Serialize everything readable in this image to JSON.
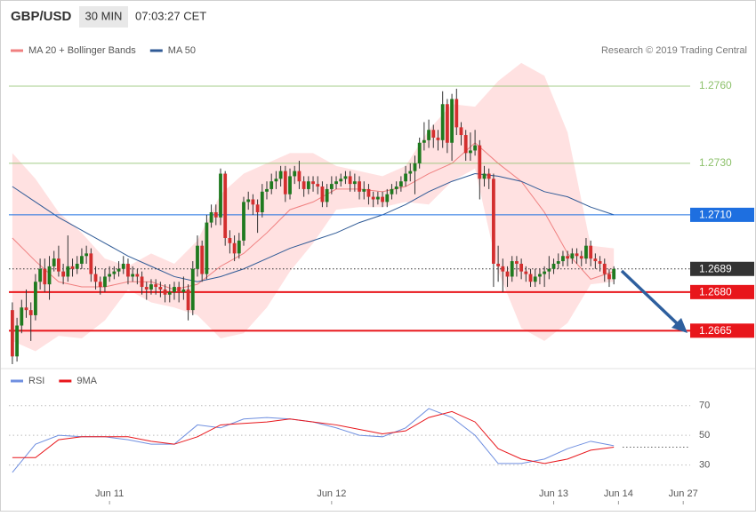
{
  "header": {
    "symbol": "GBP/USD",
    "interval": "30 MIN",
    "time": "07:03:27 CET"
  },
  "copyright": "Research © 2019 Trading Central",
  "chart_data": [
    {
      "type": "candlestick",
      "up_color": "#1f7a1f",
      "down_color": "#d32f2f",
      "wick_color": "#333333",
      "xlim": [
        -0.75,
        146.5
      ],
      "ylim": [
        1.2652,
        1.277
      ],
      "open": [
        1.2673,
        1.2655,
        1.2667,
        1.2674,
        1.2673,
        1.2671,
        1.2684,
        1.2689,
        1.2683,
        1.269,
        1.2693,
        1.2688,
        1.2686,
        1.269,
        1.2689,
        1.2691,
        1.2694,
        1.2695,
        1.2687,
        1.2684,
        1.2682,
        1.2686,
        1.2687,
        1.2688,
        1.2689,
        1.2691,
        1.2686,
        1.2687,
        1.2686,
        1.2682,
        1.2681,
        1.2683,
        1.2682,
        1.2681,
        1.2679,
        1.268,
        1.2682,
        1.268,
        1.2681,
        1.2673,
        1.2689,
        1.2698,
        1.2687,
        1.2707,
        1.2711,
        1.2709,
        1.2726,
        1.2701,
        1.2699,
        1.2695,
        1.27,
        1.2715,
        1.2716,
        1.2714,
        1.2711,
        1.2719,
        1.272,
        1.2723,
        1.2724,
        1.2727,
        1.2718,
        1.2725,
        1.2727,
        1.2723,
        1.272,
        1.2723,
        1.2722,
        1.2721,
        1.2715,
        1.272,
        1.2722,
        1.2723,
        1.2724,
        1.2725,
        1.2722,
        1.2723,
        1.2719,
        1.272,
        1.2717,
        1.2716,
        1.2717,
        1.2715,
        1.2718,
        1.272,
        1.2721,
        1.2723,
        1.2726,
        1.2727,
        1.273,
        1.2738,
        1.2739,
        1.2743,
        1.274,
        1.2739,
        1.2753,
        1.2738,
        1.2755,
        1.2744,
        1.2741,
        1.2734,
        1.2735,
        1.2737,
        1.2724,
        1.2726,
        1.2724,
        1.2691,
        1.269,
        1.2688,
        1.2686,
        1.2692,
        1.2691,
        1.2688,
        1.2687,
        1.2684,
        1.2686,
        1.2687,
        1.2688,
        1.2689,
        1.2691,
        1.2692,
        1.2694,
        1.2693,
        1.2695,
        1.2694,
        1.2693,
        1.2698,
        1.2693,
        1.2692,
        1.2691,
        1.2687,
        1.2685
      ],
      "high": [
        1.2676,
        1.267,
        1.2677,
        1.2681,
        1.2676,
        1.2687,
        1.2693,
        1.2693,
        1.2694,
        1.2696,
        1.2698,
        1.2691,
        1.2702,
        1.2693,
        1.2694,
        1.2697,
        1.2698,
        1.2697,
        1.269,
        1.2686,
        1.2689,
        1.269,
        1.269,
        1.2692,
        1.2694,
        1.2693,
        1.269,
        1.2689,
        1.2688,
        1.2684,
        1.2685,
        1.2685,
        1.2684,
        1.2683,
        1.2683,
        1.2684,
        1.2684,
        1.2686,
        1.2683,
        1.2692,
        1.2702,
        1.27,
        1.271,
        1.2714,
        1.2714,
        1.2728,
        1.2727,
        1.2704,
        1.2702,
        1.2703,
        1.2717,
        1.2719,
        1.2718,
        1.2716,
        1.2722,
        1.2723,
        1.2726,
        1.2727,
        1.2729,
        1.2729,
        1.2728,
        1.2729,
        1.2731,
        1.2725,
        1.2725,
        1.2725,
        1.2725,
        1.2723,
        1.2722,
        1.2725,
        1.2725,
        1.2726,
        1.2727,
        1.2727,
        1.2726,
        1.2725,
        1.2723,
        1.2722,
        1.2719,
        1.2719,
        1.2719,
        1.272,
        1.2722,
        1.2723,
        1.2725,
        1.2729,
        1.273,
        1.2733,
        1.274,
        1.2746,
        1.2747,
        1.2745,
        1.2743,
        1.2758,
        1.2755,
        1.2757,
        1.2759,
        1.2746,
        1.2743,
        1.2742,
        1.2743,
        1.2739,
        1.2729,
        1.2728,
        1.2726,
        1.2698,
        1.2693,
        1.269,
        1.2694,
        1.2694,
        1.2693,
        1.269,
        1.2689,
        1.2689,
        1.2689,
        1.269,
        1.2694,
        1.2693,
        1.2695,
        1.2696,
        1.2696,
        1.2697,
        1.2697,
        1.2696,
        1.2701,
        1.27,
        1.2695,
        1.2694,
        1.2693,
        1.2689,
        1.269
      ],
      "low": [
        1.2652,
        1.2653,
        1.2664,
        1.267,
        1.2661,
        1.2669,
        1.2681,
        1.268,
        1.2677,
        1.2688,
        1.2686,
        1.2683,
        1.2684,
        1.2686,
        1.2687,
        1.2689,
        1.2691,
        1.2684,
        1.2681,
        1.2679,
        1.268,
        1.2684,
        1.2685,
        1.2686,
        1.2687,
        1.2683,
        1.2684,
        1.2683,
        1.2679,
        1.2677,
        1.2679,
        1.2679,
        1.2678,
        1.2676,
        1.2676,
        1.2677,
        1.2676,
        1.2677,
        1.2669,
        1.2671,
        1.2686,
        1.2684,
        1.2685,
        1.2705,
        1.2706,
        1.2706,
        1.2698,
        1.2695,
        1.2692,
        1.2693,
        1.2698,
        1.2712,
        1.271,
        1.2703,
        1.2709,
        1.2716,
        1.2718,
        1.272,
        1.2721,
        1.2715,
        1.2716,
        1.2722,
        1.272,
        1.2717,
        1.2718,
        1.2719,
        1.2718,
        1.2713,
        1.2713,
        1.2718,
        1.272,
        1.2721,
        1.2722,
        1.2719,
        1.2719,
        1.2716,
        1.2716,
        1.2714,
        1.2713,
        1.2714,
        1.2713,
        1.2713,
        1.2716,
        1.2718,
        1.2719,
        1.2721,
        1.2723,
        1.2718,
        1.2728,
        1.2735,
        1.2736,
        1.2736,
        1.2735,
        1.2736,
        1.2734,
        1.2731,
        1.2741,
        1.2737,
        1.2731,
        1.2731,
        1.2733,
        1.2716,
        1.2721,
        1.272,
        1.2682,
        1.2684,
        1.268,
        1.2682,
        1.2684,
        1.2686,
        1.2685,
        1.2684,
        1.2682,
        1.2682,
        1.2683,
        1.2682,
        1.2685,
        1.2687,
        1.2689,
        1.269,
        1.269,
        1.2691,
        1.2691,
        1.269,
        1.2691,
        1.269,
        1.2689,
        1.2688,
        1.2684,
        1.2682,
        1.2683
      ],
      "close": [
        1.2655,
        1.2667,
        1.2674,
        1.2673,
        1.2671,
        1.2684,
        1.2689,
        1.2683,
        1.269,
        1.2693,
        1.2688,
        1.2686,
        1.269,
        1.2689,
        1.2691,
        1.2694,
        1.2695,
        1.2687,
        1.2684,
        1.2682,
        1.2686,
        1.2687,
        1.2688,
        1.2689,
        1.2691,
        1.2686,
        1.2687,
        1.2686,
        1.2682,
        1.2681,
        1.2683,
        1.2682,
        1.2681,
        1.2679,
        1.268,
        1.2682,
        1.268,
        1.2681,
        1.2673,
        1.2689,
        1.2698,
        1.2687,
        1.2707,
        1.2711,
        1.2709,
        1.2726,
        1.2701,
        1.2699,
        1.2695,
        1.27,
        1.2715,
        1.2716,
        1.2714,
        1.2711,
        1.2719,
        1.272,
        1.2723,
        1.2724,
        1.2727,
        1.2718,
        1.2725,
        1.2727,
        1.2723,
        1.272,
        1.2723,
        1.2722,
        1.2721,
        1.2715,
        1.272,
        1.2722,
        1.2723,
        1.2724,
        1.2725,
        1.2722,
        1.2723,
        1.2719,
        1.272,
        1.2717,
        1.2716,
        1.2717,
        1.2715,
        1.2718,
        1.272,
        1.2721,
        1.2723,
        1.2726,
        1.2727,
        1.273,
        1.2738,
        1.2739,
        1.2743,
        1.274,
        1.2739,
        1.2753,
        1.2738,
        1.2755,
        1.2744,
        1.2741,
        1.2734,
        1.2735,
        1.2737,
        1.2724,
        1.2726,
        1.2724,
        1.2691,
        1.269,
        1.2688,
        1.2686,
        1.2692,
        1.2691,
        1.2688,
        1.2687,
        1.2684,
        1.2686,
        1.2687,
        1.2688,
        1.2689,
        1.2691,
        1.2692,
        1.2694,
        1.2693,
        1.2695,
        1.2694,
        1.2693,
        1.2698,
        1.2693,
        1.2692,
        1.2691,
        1.2687,
        1.2685,
        1.2689
      ],
      "overlays": [
        {
          "name": "MA 20 + Bollinger Bands",
          "color": "#f08080",
          "band_color": "#ffdcdc",
          "x": [
            0,
            5,
            10,
            15,
            20,
            25,
            30,
            35,
            40,
            45,
            50,
            55,
            60,
            65,
            70,
            75,
            80,
            85,
            90,
            95,
            100,
            105,
            110,
            115,
            120,
            125,
            130
          ],
          "values": [
            1.2701,
            1.2692,
            1.2684,
            1.2682,
            1.2682,
            1.2684,
            1.2684,
            1.2681,
            1.2683,
            1.269,
            1.2695,
            1.2703,
            1.2712,
            1.2715,
            1.272,
            1.272,
            1.2719,
            1.2721,
            1.2726,
            1.273,
            1.2738,
            1.273,
            1.2723,
            1.2711,
            1.2695,
            1.2685,
            1.2688
          ],
          "upper": [
            1.2734,
            1.2724,
            1.2711,
            1.2703,
            1.2693,
            1.269,
            1.2695,
            1.2691,
            1.27,
            1.2718,
            1.2726,
            1.273,
            1.2734,
            1.2734,
            1.2729,
            1.2727,
            1.2725,
            1.2729,
            1.2743,
            1.2753,
            1.2752,
            1.2762,
            1.2769,
            1.2764,
            1.2742,
            1.2698,
            1.2697
          ],
          "lower": [
            1.2661,
            1.2657,
            1.2663,
            1.2662,
            1.2669,
            1.2681,
            1.2676,
            1.2674,
            1.2671,
            1.2662,
            1.2664,
            1.2674,
            1.2688,
            1.2699,
            1.2712,
            1.2713,
            1.2713,
            1.2715,
            1.2714,
            1.2723,
            1.2728,
            1.2688,
            1.2666,
            1.2661,
            1.2668,
            1.2683,
            1.2684
          ]
        },
        {
          "name": "MA 50",
          "color": "#2f5a96",
          "x": [
            0,
            5,
            10,
            15,
            20,
            25,
            30,
            35,
            40,
            45,
            50,
            55,
            60,
            65,
            70,
            75,
            80,
            85,
            90,
            95,
            100,
            105,
            110,
            115,
            120,
            125,
            130
          ],
          "values": [
            1.2721,
            1.2715,
            1.2709,
            1.2704,
            1.2699,
            1.2694,
            1.269,
            1.2686,
            1.2684,
            1.2686,
            1.2689,
            1.2693,
            1.2697,
            1.27,
            1.2703,
            1.2707,
            1.271,
            1.2714,
            1.2719,
            1.2723,
            1.2726,
            1.2725,
            1.2723,
            1.2719,
            1.2717,
            1.2713,
            1.271
          ]
        }
      ],
      "levels": [
        {
          "value": 1.276,
          "label": "1.2760",
          "color": "#8dc16b",
          "style": "text"
        },
        {
          "value": 1.273,
          "label": "1.2730",
          "color": "#8dc16b",
          "style": "text"
        },
        {
          "value": 1.271,
          "label": "1.2710",
          "color": "#1e6fe0",
          "style": "box"
        },
        {
          "value": 1.2689,
          "label": "1.2689",
          "color": "#333333",
          "style": "box",
          "dotted": true
        },
        {
          "value": 1.268,
          "label": "1.2680",
          "color": "#e8161b",
          "style": "box",
          "thick": true
        },
        {
          "value": 1.2665,
          "label": "1.2665",
          "color": "#e8161b",
          "style": "box",
          "thick": true
        }
      ]
    },
    {
      "type": "line",
      "xlim": [
        -0.75,
        146.5
      ],
      "ylim": [
        10,
        80
      ],
      "yticks": [
        30,
        50,
        70
      ],
      "grid": true,
      "reference_line": 42,
      "xticks": [
        {
          "value": 21,
          "label": "Jun 11"
        },
        {
          "value": 69,
          "label": "Jun 12"
        },
        {
          "value": 117,
          "label": "Jun 13"
        },
        {
          "value": 131,
          "label": "Jun 14"
        },
        {
          "value": 145,
          "label": "Jun 27"
        }
      ],
      "series": [
        {
          "name": "RSI",
          "color": "#6f8fe0",
          "x": [
            0,
            5,
            10,
            15,
            20,
            25,
            30,
            35,
            40,
            45,
            50,
            55,
            60,
            65,
            70,
            75,
            80,
            85,
            90,
            95,
            100,
            105,
            110,
            115,
            120,
            125,
            130
          ],
          "values": [
            25,
            44,
            50,
            49,
            49,
            47,
            44,
            44,
            57,
            55,
            61,
            62,
            61,
            59,
            55,
            50,
            49,
            55,
            68,
            62,
            50,
            31,
            31,
            34,
            41,
            46,
            43
          ]
        },
        {
          "name": "9MA",
          "color": "#e8161b",
          "x": [
            0,
            5,
            10,
            15,
            20,
            25,
            30,
            35,
            40,
            45,
            50,
            55,
            60,
            65,
            70,
            75,
            80,
            85,
            90,
            95,
            100,
            105,
            110,
            115,
            120,
            125,
            130
          ],
          "values": [
            35,
            35,
            47,
            49,
            49,
            49,
            46,
            44,
            49,
            57,
            58,
            59,
            61,
            59,
            57,
            54,
            51,
            53,
            62,
            66,
            59,
            41,
            34,
            31,
            34,
            40,
            42
          ]
        }
      ]
    }
  ]
}
